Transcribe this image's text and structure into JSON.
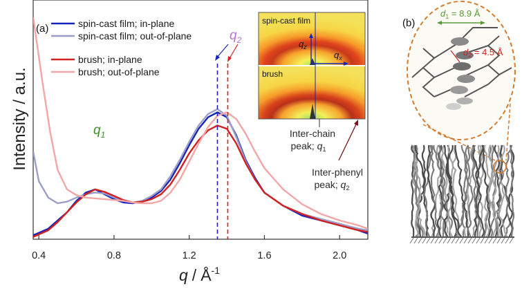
{
  "chart_data": {
    "type": "line",
    "panel_a_label": "(a)",
    "panel_b_label": "(b)",
    "xlabel_q": "q",
    "xlabel_sep": "/",
    "xlabel_unit": "Å",
    "xlabel_exp": "-1",
    "ylabel": "Intensity / a.u.",
    "xlim": [
      0.37,
      2.15
    ],
    "ylim": [
      0,
      1
    ],
    "x_ticks": [
      0.4,
      0.8,
      1.2,
      1.6,
      2.0
    ],
    "x_tick_labels": [
      "0.4",
      "0.8",
      "1.2",
      "1.6",
      "2.0"
    ],
    "grid": false,
    "legend_position": "top-left",
    "series": [
      {
        "name": "spin-cast film; in-plane",
        "color": "#1726b8",
        "points": [
          [
            0.37,
            0.02
          ],
          [
            0.45,
            0.06
          ],
          [
            0.5,
            0.11
          ],
          [
            0.55,
            0.16
          ],
          [
            0.6,
            0.23
          ],
          [
            0.65,
            0.28
          ],
          [
            0.7,
            0.3
          ],
          [
            0.75,
            0.27
          ],
          [
            0.8,
            0.24
          ],
          [
            0.85,
            0.22
          ],
          [
            0.9,
            0.215
          ],
          [
            0.95,
            0.225
          ],
          [
            1.0,
            0.25
          ],
          [
            1.05,
            0.29
          ],
          [
            1.1,
            0.36
          ],
          [
            1.15,
            0.46
          ],
          [
            1.2,
            0.57
          ],
          [
            1.25,
            0.67
          ],
          [
            1.3,
            0.74
          ],
          [
            1.35,
            0.77
          ],
          [
            1.4,
            0.74
          ],
          [
            1.45,
            0.63
          ],
          [
            1.5,
            0.48
          ],
          [
            1.55,
            0.37
          ],
          [
            1.6,
            0.28
          ],
          [
            1.7,
            0.2
          ],
          [
            1.8,
            0.14
          ],
          [
            1.9,
            0.11
          ],
          [
            2.0,
            0.08
          ],
          [
            2.1,
            0.05
          ],
          [
            2.15,
            0.03
          ]
        ]
      },
      {
        "name": "spin-cast film; out-of-plane",
        "color": "#9b9ec9",
        "points": [
          [
            0.37,
            0.53
          ],
          [
            0.4,
            0.35
          ],
          [
            0.45,
            0.25
          ],
          [
            0.5,
            0.215
          ],
          [
            0.55,
            0.225
          ],
          [
            0.6,
            0.25
          ],
          [
            0.65,
            0.27
          ],
          [
            0.7,
            0.28
          ],
          [
            0.75,
            0.275
          ],
          [
            0.8,
            0.25
          ],
          [
            0.85,
            0.23
          ],
          [
            0.9,
            0.22
          ],
          [
            0.95,
            0.23
          ],
          [
            1.0,
            0.26
          ],
          [
            1.05,
            0.3
          ],
          [
            1.1,
            0.38
          ],
          [
            1.15,
            0.48
          ],
          [
            1.2,
            0.59
          ],
          [
            1.25,
            0.69
          ],
          [
            1.3,
            0.76
          ],
          [
            1.35,
            0.79
          ],
          [
            1.4,
            0.75
          ],
          [
            1.45,
            0.62
          ],
          [
            1.5,
            0.47
          ],
          [
            1.55,
            0.36
          ],
          [
            1.6,
            0.28
          ],
          [
            1.7,
            0.2
          ],
          [
            1.8,
            0.15
          ],
          [
            1.9,
            0.12
          ],
          [
            2.0,
            0.09
          ],
          [
            2.1,
            0.06
          ],
          [
            2.15,
            0.05
          ]
        ]
      },
      {
        "name": "brush; in-plane",
        "color": "#d42020",
        "points": [
          [
            0.37,
            0.01
          ],
          [
            0.45,
            0.05
          ],
          [
            0.5,
            0.1
          ],
          [
            0.55,
            0.16
          ],
          [
            0.6,
            0.22
          ],
          [
            0.65,
            0.27
          ],
          [
            0.7,
            0.3
          ],
          [
            0.75,
            0.285
          ],
          [
            0.8,
            0.26
          ],
          [
            0.85,
            0.235
          ],
          [
            0.9,
            0.22
          ],
          [
            0.95,
            0.225
          ],
          [
            1.0,
            0.24
          ],
          [
            1.05,
            0.27
          ],
          [
            1.1,
            0.33
          ],
          [
            1.15,
            0.42
          ],
          [
            1.2,
            0.52
          ],
          [
            1.25,
            0.6
          ],
          [
            1.3,
            0.66
          ],
          [
            1.35,
            0.69
          ],
          [
            1.4,
            0.67
          ],
          [
            1.45,
            0.58
          ],
          [
            1.5,
            0.46
          ],
          [
            1.55,
            0.36
          ],
          [
            1.6,
            0.28
          ],
          [
            1.7,
            0.2
          ],
          [
            1.8,
            0.15
          ],
          [
            1.9,
            0.11
          ],
          [
            2.0,
            0.08
          ],
          [
            2.1,
            0.05
          ],
          [
            2.15,
            0.04
          ]
        ]
      },
      {
        "name": "brush; out-of-plane",
        "color": "#f4a5a5",
        "points": [
          [
            0.37,
            1.35
          ],
          [
            0.42,
            0.95
          ],
          [
            0.46,
            0.65
          ],
          [
            0.5,
            0.42
          ],
          [
            0.55,
            0.3
          ],
          [
            0.6,
            0.265
          ],
          [
            0.65,
            0.25
          ],
          [
            0.7,
            0.245
          ],
          [
            0.75,
            0.24
          ],
          [
            0.8,
            0.235
          ],
          [
            0.85,
            0.23
          ],
          [
            0.9,
            0.22
          ],
          [
            0.95,
            0.215
          ],
          [
            1.0,
            0.215
          ],
          [
            1.05,
            0.23
          ],
          [
            1.1,
            0.28
          ],
          [
            1.15,
            0.36
          ],
          [
            1.2,
            0.47
          ],
          [
            1.25,
            0.58
          ],
          [
            1.3,
            0.68
          ],
          [
            1.35,
            0.75
          ],
          [
            1.4,
            0.77
          ],
          [
            1.45,
            0.73
          ],
          [
            1.5,
            0.64
          ],
          [
            1.55,
            0.53
          ],
          [
            1.6,
            0.43
          ],
          [
            1.7,
            0.3
          ],
          [
            1.8,
            0.21
          ],
          [
            1.9,
            0.15
          ],
          [
            2.0,
            0.11
          ],
          [
            2.1,
            0.08
          ],
          [
            2.15,
            0.06
          ]
        ]
      }
    ],
    "peak_lines": [
      {
        "x": 1.35,
        "color": "#1726b8"
      },
      {
        "x": 1.405,
        "color": "#d42020"
      }
    ],
    "annotations": {
      "q1_main": "q",
      "q1_sub": "1",
      "q1_color": "#3a8f2a",
      "q2_main": "q",
      "q2_sub": "2",
      "q2_color": "#c070d8"
    }
  },
  "inset": {
    "top_label": "spin-cast film",
    "bottom_label": "brush",
    "qz_main": "q",
    "qz_sub": "z",
    "qx_main": "q",
    "qx_sub": "x",
    "interchain_line1": "Inter-chain",
    "interchain_line2": "peak; ",
    "interchain_q": "q",
    "interchain_sub": "1",
    "interphenyl_line1": "Inter-phenyl",
    "interphenyl_line2": "peak; ",
    "interphenyl_q": "q",
    "interphenyl_sub": "2"
  },
  "schematic": {
    "d1_main": "d",
    "d1_sub": "1",
    "d1_value": " = 8.9 Å",
    "d1_color": "#5a9a3a",
    "d2_main": "d",
    "d2_sub": "2",
    "d2_value": " = 4.5 Å",
    "d2_color": "#d42020"
  }
}
